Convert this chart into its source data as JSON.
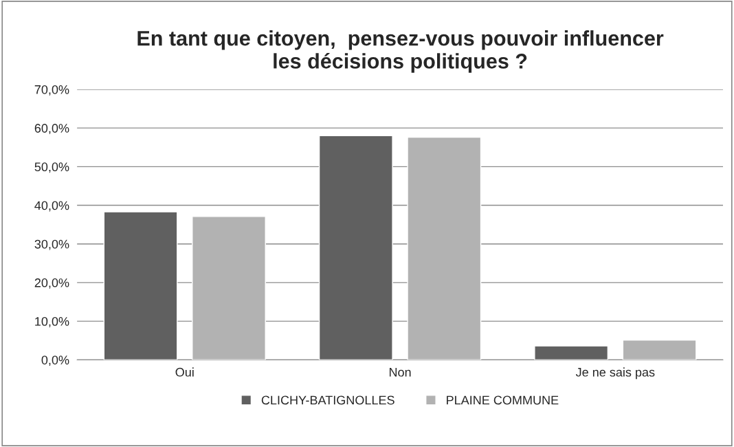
{
  "chart_data": {
    "type": "bar",
    "title": "En tant que citoyen,  pensez-vous pouvoir influencer\nles décisions politiques ?",
    "categories": [
      "Oui",
      "Non",
      "Je ne sais pas"
    ],
    "series": [
      {
        "name": "CLICHY-BATIGNOLLES",
        "color": "#606060",
        "values": [
          38.3,
          58.0,
          3.6
        ]
      },
      {
        "name": "PLAINE COMMUNE",
        "color": "#b2b2b2",
        "values": [
          37.1,
          57.6,
          5.1
        ]
      }
    ],
    "ylim": [
      0,
      70
    ],
    "yticks": [
      {
        "value": 0,
        "label": "0,0%"
      },
      {
        "value": 10,
        "label": "10,0%"
      },
      {
        "value": 20,
        "label": "20,0%"
      },
      {
        "value": 30,
        "label": "30,0%"
      },
      {
        "value": 40,
        "label": "40,0%"
      },
      {
        "value": 50,
        "label": "50,0%"
      },
      {
        "value": 60,
        "label": "60,0%"
      },
      {
        "value": 70,
        "label": "70,0%"
      }
    ],
    "grid": "y",
    "legend": "bottom"
  }
}
